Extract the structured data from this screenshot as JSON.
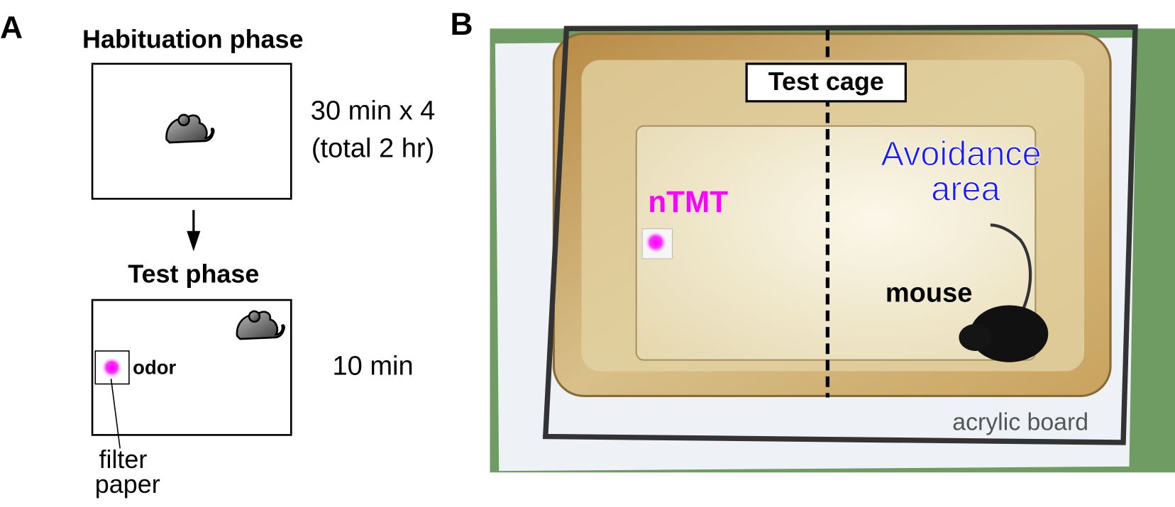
{
  "panel_a": {
    "label": "A",
    "habituation": {
      "title": "Habituation phase",
      "duration_line1": "30 min x 4",
      "duration_line2": "(total 2 hr)"
    },
    "test": {
      "title": "Test phase",
      "odor": "odor",
      "duration": "10 min",
      "filter_line1": "filter",
      "filter_line2": "paper"
    }
  },
  "panel_b": {
    "label": "B",
    "test_cage": "Test cage",
    "avoidance_line1": "Avoidance",
    "avoidance_line2": "area",
    "odor": "nTMT",
    "mouse": "mouse",
    "board": "acrylic board"
  }
}
